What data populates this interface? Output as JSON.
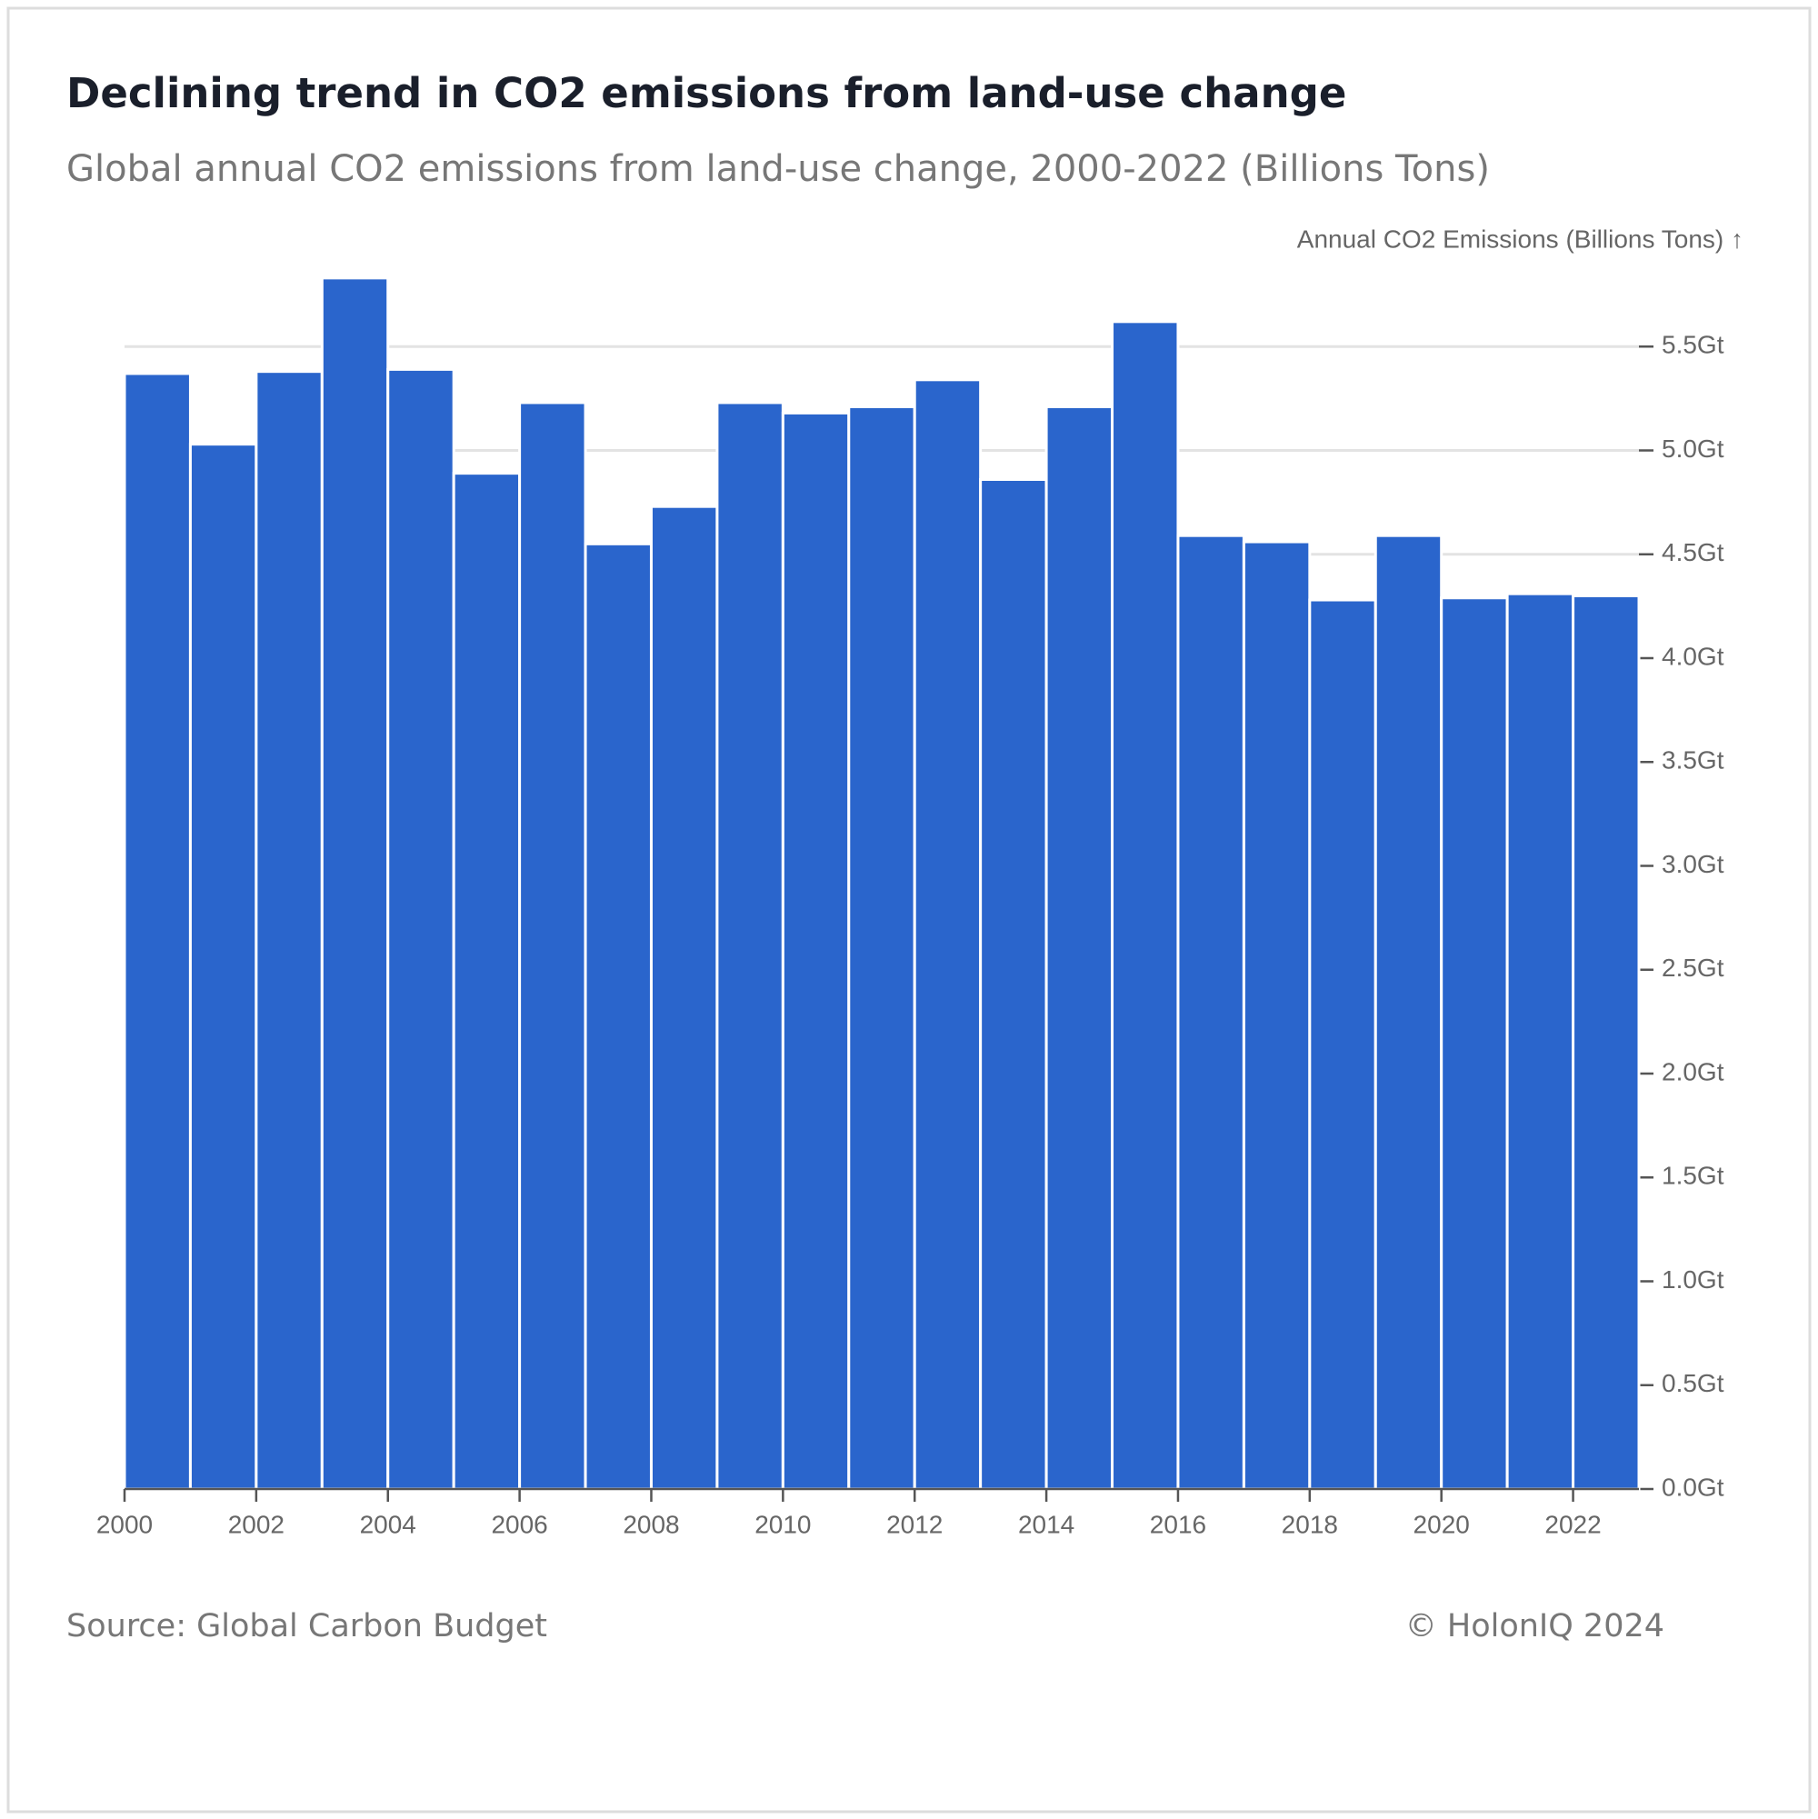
{
  "chart_data": {
    "type": "bar",
    "title": "Declining trend in CO2 emissions from land-use change",
    "subtitle": "Global annual CO2 emissions from land-use change, 2000-2022 (Billions Tons)",
    "y_axis_label": "Annual CO2 Emissions (Billions Tons) ↑",
    "source": "Source: Global Carbon Budget",
    "copyright": "© HolonIQ 2024",
    "x": [
      2000,
      2001,
      2002,
      2003,
      2004,
      2005,
      2006,
      2007,
      2008,
      2009,
      2010,
      2011,
      2012,
      2013,
      2014,
      2015,
      2016,
      2017,
      2018,
      2019,
      2020,
      2021,
      2022
    ],
    "values": [
      5.37,
      5.03,
      5.38,
      5.83,
      5.39,
      4.89,
      5.23,
      4.55,
      4.73,
      5.23,
      5.18,
      5.21,
      5.34,
      4.86,
      5.21,
      5.62,
      4.59,
      4.56,
      4.28,
      4.59,
      4.29,
      4.31,
      4.3
    ],
    "color": "#2a65cc",
    "xlim": [
      2000,
      2023
    ],
    "xticks": [
      2000,
      2002,
      2004,
      2006,
      2008,
      2010,
      2012,
      2014,
      2016,
      2018,
      2020,
      2022
    ],
    "ylim": [
      0,
      6
    ],
    "yticks": [
      {
        "value": 0,
        "label": "0.0Gt"
      },
      {
        "value": 0.5,
        "label": "0.5Gt"
      },
      {
        "value": 1,
        "label": "1.0Gt"
      },
      {
        "value": 1.5,
        "label": "1.5Gt"
      },
      {
        "value": 2,
        "label": "2.0Gt"
      },
      {
        "value": 2.5,
        "label": "2.5Gt"
      },
      {
        "value": 3,
        "label": "3.0Gt"
      },
      {
        "value": 3.5,
        "label": "3.5Gt"
      },
      {
        "value": 4,
        "label": "4.0Gt"
      },
      {
        "value": 4.5,
        "label": "4.5Gt"
      },
      {
        "value": 5,
        "label": "5.0Gt"
      },
      {
        "value": 5.5,
        "label": "5.5Gt"
      }
    ],
    "grid": true
  }
}
